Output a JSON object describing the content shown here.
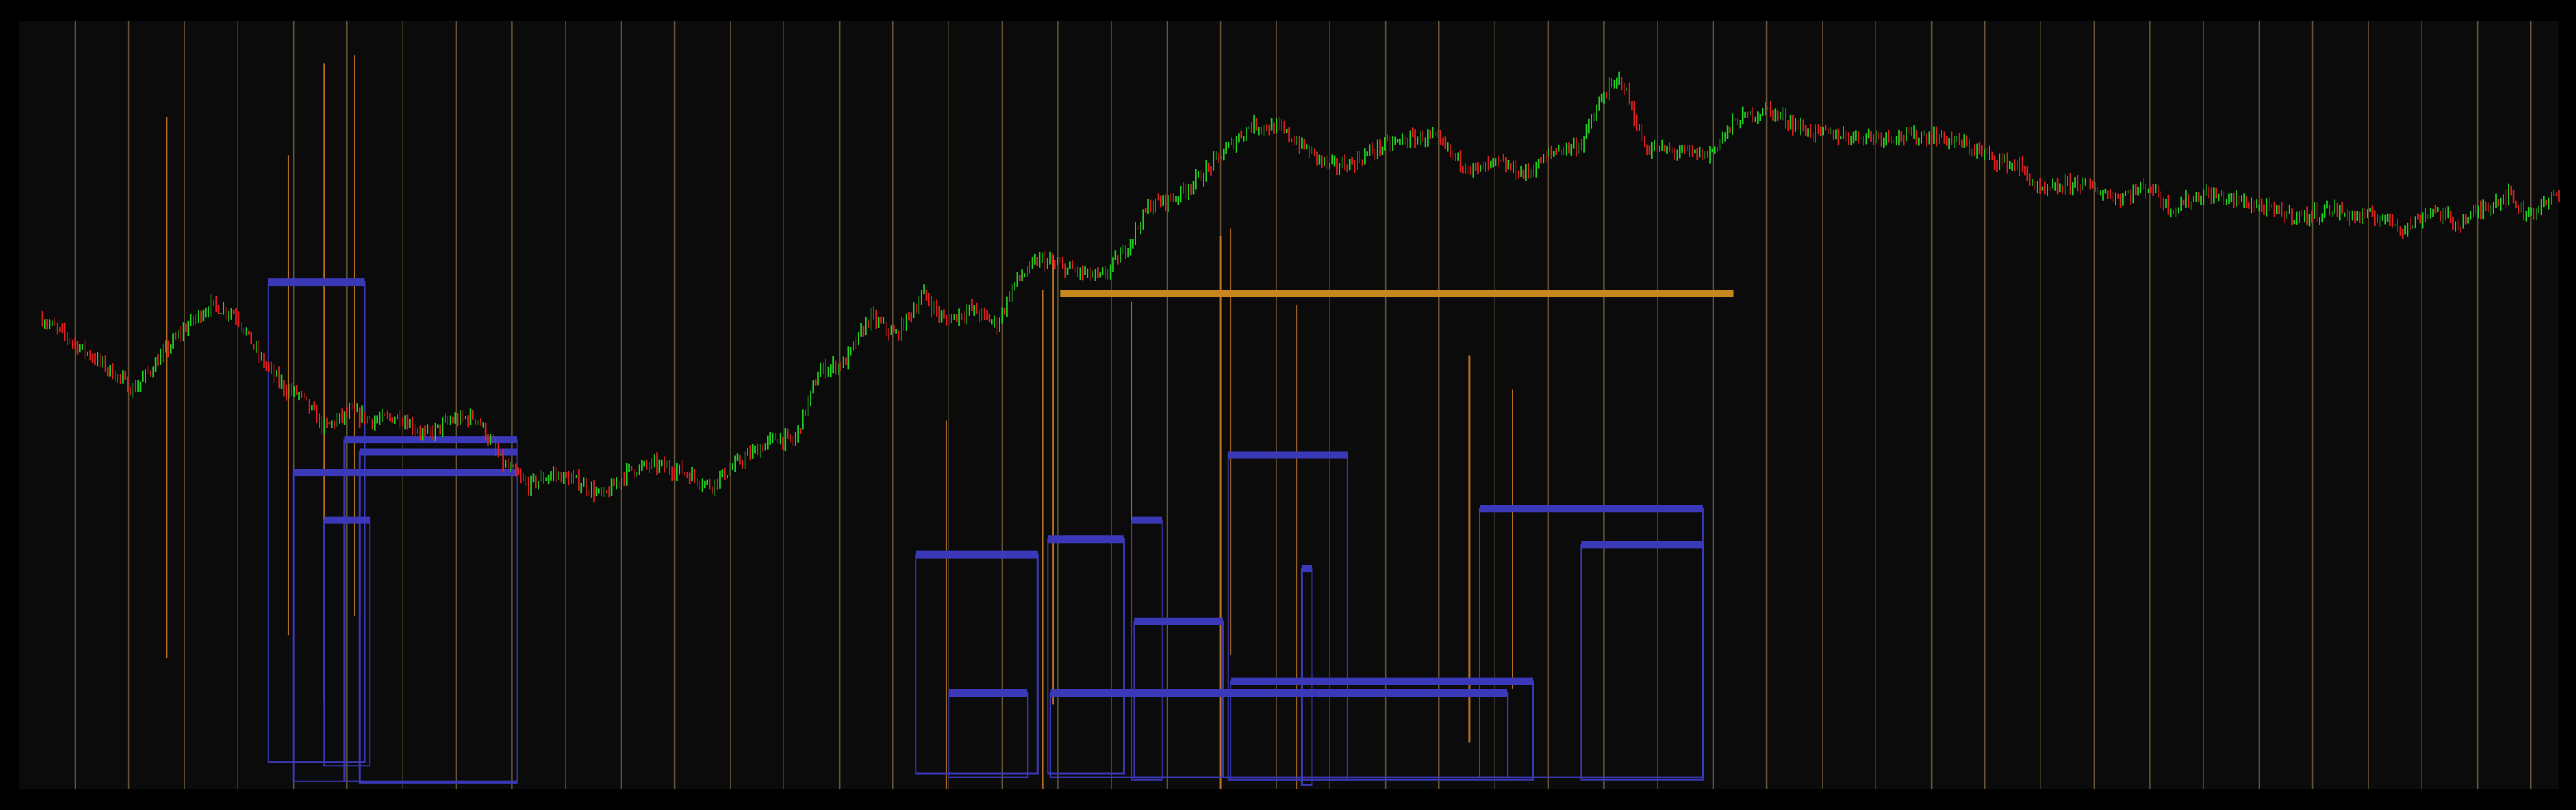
{
  "chart_data": {
    "type": "candlestick",
    "title": "",
    "xlabel": "",
    "ylabel": "",
    "grid": false,
    "legend": "none",
    "x_range": [
      0,
      100
    ],
    "y_range": [
      0,
      1000
    ],
    "colors": {
      "background": "#0b0b0b",
      "frame": "#000000",
      "bullish": "#21d321",
      "bearish": "#e01f1f",
      "session_separator": "#b0915a",
      "volume_spike": "#c47a26",
      "zone": "#3b39b8",
      "resistance_level": "#c8861e"
    },
    "price_path": [
      [
        0.8,
        615
      ],
      [
        2,
        585
      ],
      [
        3.2,
        555
      ],
      [
        4.5,
        520
      ],
      [
        5.5,
        560
      ],
      [
        6.5,
        600
      ],
      [
        7.5,
        630
      ],
      [
        8.5,
        620
      ],
      [
        9.5,
        560
      ],
      [
        10.5,
        520
      ],
      [
        11,
        515
      ],
      [
        12,
        470
      ],
      [
        13,
        490
      ],
      [
        14,
        480
      ],
      [
        15,
        485
      ],
      [
        16,
        460
      ],
      [
        17,
        480
      ],
      [
        18,
        485
      ],
      [
        19,
        425
      ],
      [
        20,
        395
      ],
      [
        21,
        410
      ],
      [
        22,
        400
      ],
      [
        23,
        380
      ],
      [
        24,
        415
      ],
      [
        25,
        422
      ],
      [
        26,
        415
      ],
      [
        27.2,
        395
      ],
      [
        28.5,
        430
      ],
      [
        29.8,
        458
      ],
      [
        30.5,
        452
      ],
      [
        31.5,
        545
      ],
      [
        32.5,
        555
      ],
      [
        33.5,
        615
      ],
      [
        34.5,
        590
      ],
      [
        35.6,
        645
      ],
      [
        36.4,
        610
      ],
      [
        37.5,
        625
      ],
      [
        38.5,
        605
      ],
      [
        39.2,
        660
      ],
      [
        40.2,
        690
      ],
      [
        41.5,
        675
      ],
      [
        42.6,
        665
      ],
      [
        43.5,
        700
      ],
      [
        44.5,
        760
      ],
      [
        45.5,
        770
      ],
      [
        46.6,
        800
      ],
      [
        47.6,
        835
      ],
      [
        48.5,
        865
      ],
      [
        49.6,
        860
      ],
      [
        50.8,
        830
      ],
      [
        51.6,
        810
      ],
      [
        52.5,
        815
      ],
      [
        53.5,
        835
      ],
      [
        54.6,
        845
      ],
      [
        55.6,
        850
      ],
      [
        56.6,
        820
      ],
      [
        57.4,
        805
      ],
      [
        58.2,
        815
      ],
      [
        59.3,
        800
      ],
      [
        60.4,
        830
      ],
      [
        61.5,
        840
      ],
      [
        62.4,
        905
      ],
      [
        63.1,
        925
      ],
      [
        64,
        835
      ],
      [
        65.1,
        830
      ],
      [
        66.5,
        825
      ],
      [
        67.6,
        870
      ],
      [
        68.8,
        885
      ],
      [
        70.5,
        855
      ],
      [
        72,
        850
      ],
      [
        73.5,
        850
      ],
      [
        75.5,
        850
      ],
      [
        76.5,
        840
      ],
      [
        77.8,
        820
      ],
      [
        78.8,
        810
      ],
      [
        79.6,
        775
      ],
      [
        81,
        790
      ],
      [
        82.6,
        770
      ],
      [
        83.9,
        785
      ],
      [
        84.7,
        755
      ],
      [
        86,
        775
      ],
      [
        87.5,
        765
      ],
      [
        89,
        750
      ],
      [
        90,
        745
      ],
      [
        91,
        755
      ],
      [
        92,
        745
      ],
      [
        93,
        745
      ],
      [
        94,
        730
      ],
      [
        95,
        755
      ],
      [
        96,
        735
      ],
      [
        97.2,
        760
      ],
      [
        98,
        775
      ],
      [
        98.6,
        750
      ],
      [
        99.5,
        760
      ],
      [
        100,
        780
      ]
    ],
    "session_separators": [
      2.2,
      4.3,
      6.5,
      8.6,
      10.8,
      12.9,
      15.1,
      17.2,
      19.4,
      21.5,
      23.7,
      25.8,
      28,
      30.1,
      32.3,
      34.4,
      36.6,
      38.7,
      40.9,
      43,
      45.2,
      47.3,
      49.5,
      51.6,
      53.8,
      55.9,
      58.1,
      60.2,
      62.4,
      64.5,
      66.7,
      68.8,
      71,
      73.1,
      75.3,
      77.4,
      79.6,
      81.7,
      83.9,
      86,
      88.2,
      90.3,
      92.5,
      94.6,
      96.8,
      98.9
    ],
    "volume_spikes": [
      [
        5.8,
        875,
        170
      ],
      [
        10.6,
        825,
        200
      ],
      [
        12,
        945,
        115
      ],
      [
        13.2,
        955,
        225
      ],
      [
        36.5,
        480,
        0
      ],
      [
        40.3,
        650,
        0
      ],
      [
        40.7,
        695,
        110
      ],
      [
        43.8,
        635,
        200
      ],
      [
        47.3,
        720,
        0
      ],
      [
        47.7,
        730,
        175
      ],
      [
        50.3,
        630,
        0
      ],
      [
        57.1,
        565,
        60
      ],
      [
        58.8,
        520,
        130
      ],
      [
        61.3,
        0,
        0
      ]
    ],
    "zones": [
      [
        9.8,
        13.6,
        660,
        35
      ],
      [
        12,
        13.8,
        350,
        30
      ],
      [
        12.8,
        19.6,
        455,
        10
      ],
      [
        13.4,
        19.6,
        439,
        8
      ],
      [
        10.8,
        19.6,
        412,
        10
      ],
      [
        35.3,
        40.1,
        305,
        20
      ],
      [
        36.6,
        39.7,
        125,
        15
      ],
      [
        40.5,
        43.5,
        325,
        20
      ],
      [
        40.6,
        58.6,
        125,
        15
      ],
      [
        43.8,
        45,
        350,
        12
      ],
      [
        43.9,
        47.4,
        218,
        15
      ],
      [
        47.7,
        59.6,
        140,
        12
      ],
      [
        47.6,
        52.3,
        435,
        12
      ],
      [
        57.5,
        66.3,
        365,
        15
      ],
      [
        61.5,
        66.3,
        318,
        12
      ],
      [
        50.5,
        50.9,
        287,
        5
      ]
    ],
    "resistance_level": [
      41,
      67.5,
      645
    ]
  }
}
